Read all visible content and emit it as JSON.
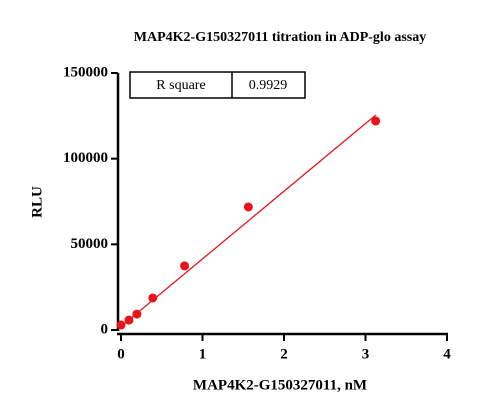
{
  "chart_data": {
    "type": "scatter",
    "title": "MAP4K2-G150327011 titration in  ADP-glo assay",
    "x_label": "MAP4K2-G150327011, nM",
    "y_label": "RLU",
    "stats": {
      "label": "R square",
      "value": "0.9929"
    },
    "series": [
      {
        "color": "#e8141b",
        "x": [
          0,
          0.098,
          0.195,
          0.39,
          0.78,
          1.5625,
          3.125
        ],
        "values": [
          2900,
          5800,
          9300,
          18700,
          37400,
          71800,
          122000
        ]
      }
    ],
    "fit": {
      "color": "#e8141b",
      "slope": 39500,
      "intercept": 2000
    },
    "xlim": [
      0,
      4
    ],
    "xticks": [
      0,
      1,
      2,
      3,
      4
    ],
    "ylim": [
      0,
      150000
    ],
    "yticks": [
      0,
      50000,
      100000,
      150000
    ]
  }
}
